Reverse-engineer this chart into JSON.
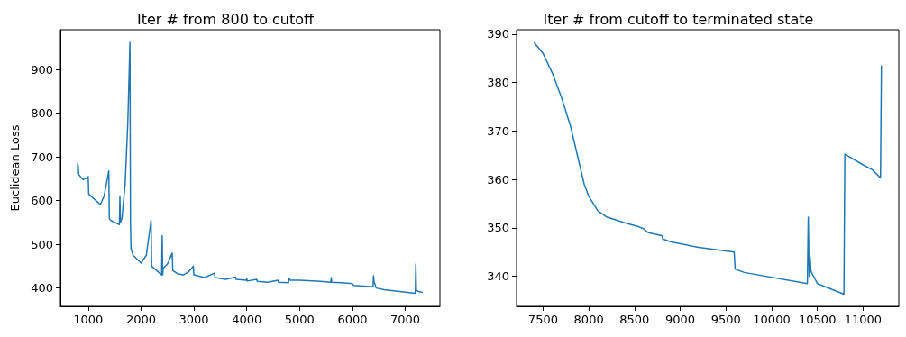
{
  "chart_data": [
    {
      "type": "line",
      "title": "Iter # from 800 to cutoff",
      "ylabel": "Euclidean Loss",
      "grid": false,
      "marker": "none",
      "line_style": "solid",
      "x": [
        800,
        800,
        810,
        820,
        900,
        980,
        1000,
        1010,
        1230,
        1300,
        1390,
        1400,
        1420,
        1590,
        1600,
        1610,
        1640,
        1700,
        1750,
        1790,
        1800,
        1810,
        1850,
        2000,
        2100,
        2190,
        2200,
        2390,
        2400,
        2410,
        2420,
        2500,
        2590,
        2600,
        2700,
        2800,
        2900,
        2990,
        3000,
        3200,
        3390,
        3400,
        3600,
        3790,
        3800,
        3990,
        4000,
        4010,
        4190,
        4200,
        4400,
        4590,
        4600,
        4790,
        4800,
        4820,
        5000,
        5400,
        5590,
        5600,
        5610,
        5800,
        6000,
        6020,
        6390,
        6400,
        6410,
        6450,
        6600,
        7190,
        7200,
        7210,
        7250,
        7330
      ],
      "series": [
        {
          "color": "#1f77b4",
          "values": [
            685,
            662,
            680,
            660,
            648,
            652,
            655,
            615,
            591,
            610,
            668,
            560,
            555,
            545,
            610,
            550,
            560,
            640,
            780,
            962,
            550,
            490,
            475,
            457,
            475,
            555,
            450,
            430,
            520,
            430,
            445,
            455,
            480,
            440,
            432,
            430,
            437,
            450,
            430,
            424,
            434,
            424,
            420,
            425,
            420,
            418,
            422,
            416,
            420,
            415,
            413,
            418,
            413,
            412,
            423,
            418,
            418,
            415,
            413,
            424,
            413,
            412,
            410,
            406,
            403,
            428,
            415,
            400,
            396,
            388,
            455,
            395,
            392,
            390
          ]
        }
      ],
      "xlim": [
        474,
        7656
      ],
      "xticks": [
        1000,
        2000,
        3000,
        4000,
        5000,
        6000,
        7000
      ],
      "ylim": [
        358,
        991
      ],
      "yticks": [
        400,
        500,
        600,
        700,
        800,
        900
      ]
    },
    {
      "type": "line",
      "title": "Iter # from cutoff to terminated state",
      "grid": false,
      "marker": "none",
      "line_style": "solid",
      "x": [
        7400,
        7500,
        7600,
        7700,
        7800,
        7900,
        7950,
        8000,
        8100,
        8200,
        8400,
        8550,
        8600,
        8650,
        8800,
        8810,
        8900,
        9200,
        9590,
        9600,
        9700,
        10390,
        10400,
        10410,
        10420,
        10430,
        10500,
        10790,
        10800,
        11000,
        11100,
        11190,
        11200
      ],
      "series": [
        {
          "color": "#1f77b4",
          "values": [
            388.3,
            386,
            382,
            377,
            371,
            363,
            359,
            356.5,
            353.5,
            352.2,
            351,
            350.2,
            349.8,
            349,
            348.4,
            347.7,
            347.1,
            346,
            345,
            341.5,
            340.8,
            338.5,
            352.2,
            340,
            344,
            341,
            338.5,
            336.3,
            365.2,
            363,
            362,
            360.3,
            383.5
          ]
        }
      ],
      "xlim": [
        7210,
        11390
      ],
      "xticks": [
        7500,
        8000,
        8500,
        9000,
        9500,
        10000,
        10500,
        11000
      ],
      "ylim": [
        333.8,
        390.9
      ],
      "yticks": [
        340,
        350,
        360,
        370,
        380,
        390
      ]
    }
  ]
}
